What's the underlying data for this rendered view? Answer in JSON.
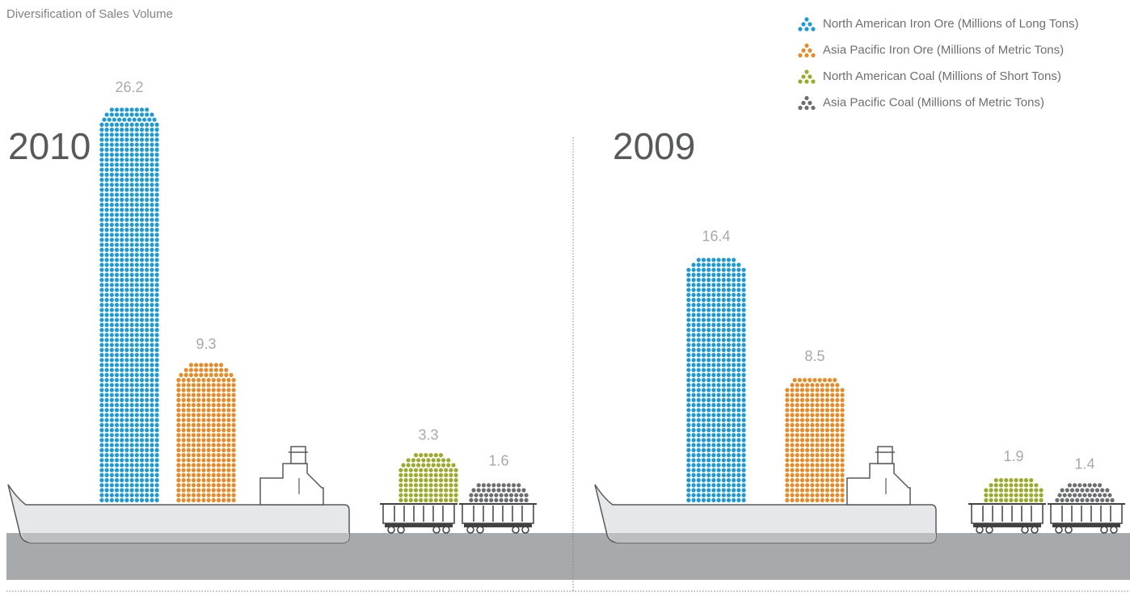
{
  "title": "Diversification of Sales Volume",
  "legend": [
    {
      "name": "North American Iron Ore (Millions of Long Tons)",
      "color": "#1b9ad6"
    },
    {
      "name": "Asia Pacific Iron Ore (Millions of Metric Tons)",
      "color": "#e98a27"
    },
    {
      "name": "North American Coal (Millions of Short Tons)",
      "color": "#9aac2a"
    },
    {
      "name": "Asia Pacific Coal (Millions of Metric Tons)",
      "color": "#6d6e71"
    }
  ],
  "chart_data": [
    {
      "type": "pictogram",
      "title": "2010",
      "values": [
        26.2,
        9.3,
        3.3,
        1.6
      ]
    },
    {
      "type": "pictogram",
      "title": "2009",
      "values": [
        16.4,
        8.5,
        1.9,
        1.4
      ]
    }
  ]
}
